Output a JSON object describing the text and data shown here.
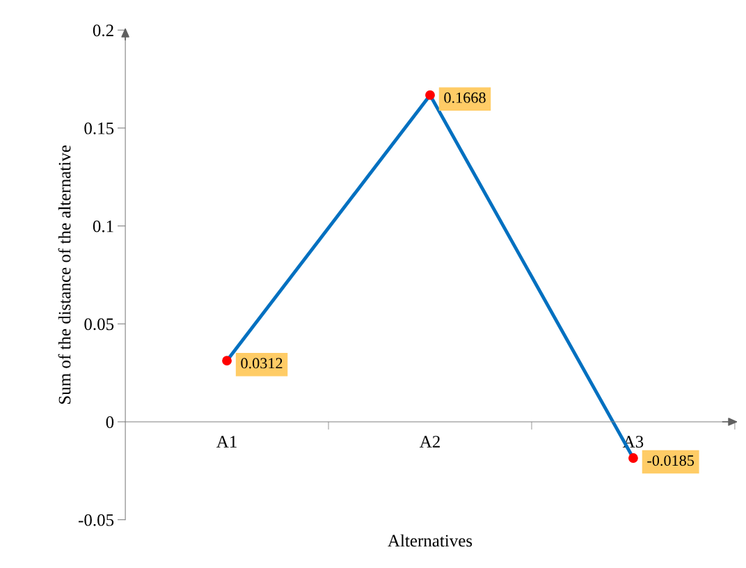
{
  "chart_data": {
    "type": "line",
    "xlabel": "Alternatives",
    "ylabel": "Sum of the distance of the alternative",
    "categories": [
      "A1",
      "A2",
      "A3"
    ],
    "series": [
      {
        "color": "#0070c0",
        "colors": [
          "#ff0000",
          "#ff0000",
          "#ff0000"
        ],
        "values": [
          0.0312,
          0.1668,
          -0.0185
        ]
      }
    ],
    "ylim": [
      -0.05,
      0.2
    ],
    "yticks": [
      {
        "value": -0.05,
        "label": "-0.05"
      },
      0,
      0.05,
      0.1,
      0.15,
      0.2
    ],
    "data_labels": true,
    "grid": false,
    "legend": false,
    "marker": "circle",
    "line_style": "solid"
  }
}
